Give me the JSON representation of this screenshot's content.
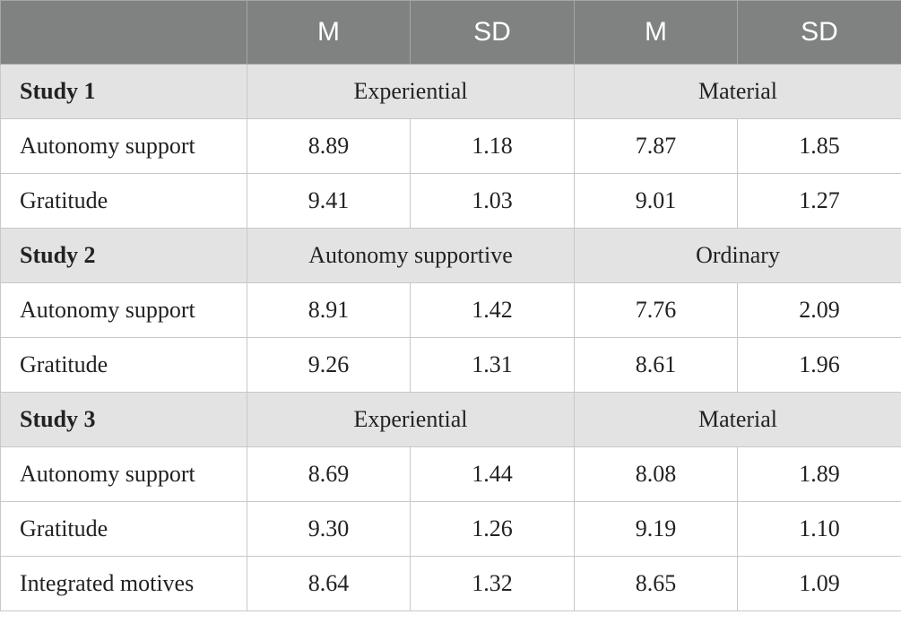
{
  "header": {
    "m1": "M",
    "sd1": "SD",
    "m2": "M",
    "sd2": "SD"
  },
  "studies": [
    {
      "label": "Study 1",
      "group1": "Experiential",
      "group2": "Material",
      "rows": [
        {
          "label": "Autonomy support",
          "m1": "8.89",
          "sd1": "1.18",
          "m2": "7.87",
          "sd2": "1.85"
        },
        {
          "label": "Gratitude",
          "m1": "9.41",
          "sd1": "1.03",
          "m2": "9.01",
          "sd2": "1.27"
        }
      ]
    },
    {
      "label": "Study 2",
      "group1": "Autonomy supportive",
      "group2": "Ordinary",
      "rows": [
        {
          "label": "Autonomy support",
          "m1": "8.91",
          "sd1": "1.42",
          "m2": "7.76",
          "sd2": "2.09"
        },
        {
          "label": "Gratitude",
          "m1": "9.26",
          "sd1": "1.31",
          "m2": "8.61",
          "sd2": "1.96"
        }
      ]
    },
    {
      "label": "Study 3",
      "group1": "Experiential",
      "group2": "Material",
      "rows": [
        {
          "label": "Autonomy support",
          "m1": "8.69",
          "sd1": "1.44",
          "m2": "8.08",
          "sd2": "1.89"
        },
        {
          "label": "Gratitude",
          "m1": "9.30",
          "sd1": "1.26",
          "m2": "9.19",
          "sd2": "1.10"
        },
        {
          "label": "Integrated motives",
          "m1": "8.64",
          "sd1": "1.32",
          "m2": "8.65",
          "sd2": "1.09"
        }
      ]
    }
  ]
}
